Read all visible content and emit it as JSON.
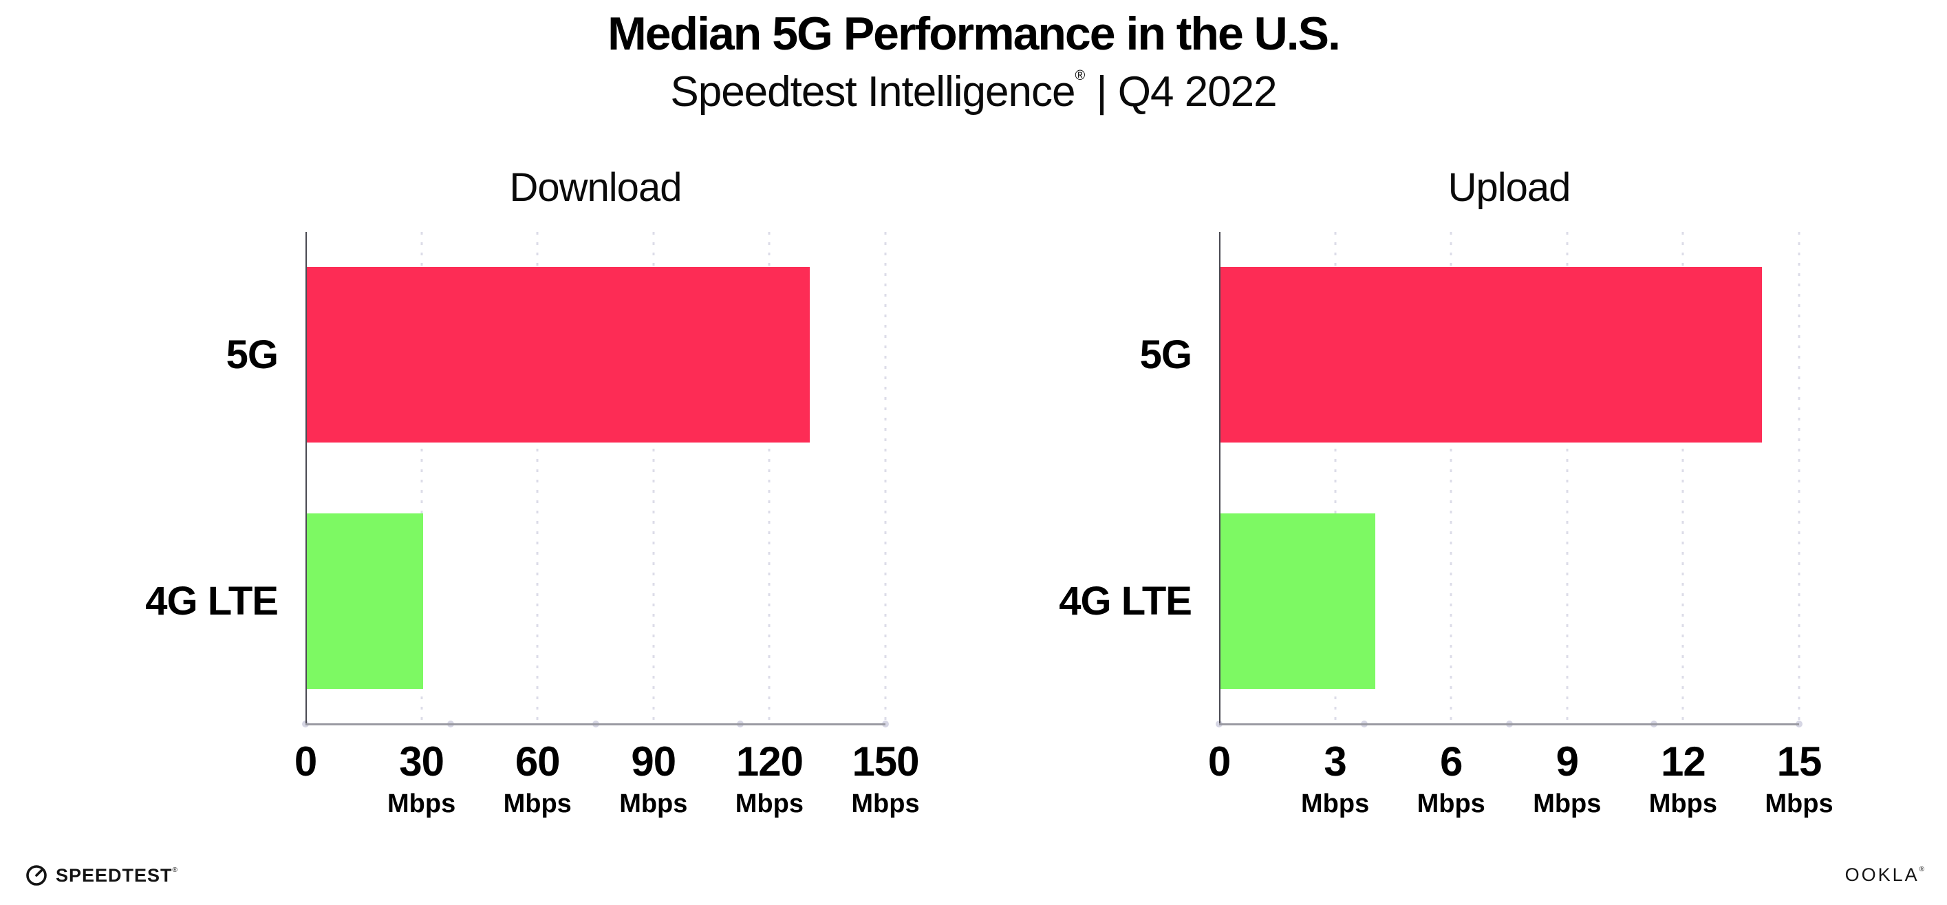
{
  "header": {
    "title": "Median 5G Performance in the U.S.",
    "subtitle_brand": "Speedtest Intelligence",
    "subtitle_reg": "®",
    "subtitle_rest": " | Q4 2022"
  },
  "chart_data": [
    {
      "type": "bar",
      "orientation": "horizontal",
      "title": "Download",
      "categories": [
        "5G",
        "4G LTE"
      ],
      "values": [
        130,
        30
      ],
      "unit": "Mbps",
      "xlim": [
        0,
        150
      ],
      "ticks": [
        0,
        30,
        60,
        90,
        120,
        150
      ],
      "grid": true,
      "bar_colors": [
        "#FD2C55",
        "#7DF963"
      ]
    },
    {
      "type": "bar",
      "orientation": "horizontal",
      "title": "Upload",
      "categories": [
        "5G",
        "4G LTE"
      ],
      "values": [
        14,
        4
      ],
      "unit": "Mbps",
      "xlim": [
        0,
        15
      ],
      "ticks": [
        0,
        3,
        6,
        9,
        12,
        15
      ],
      "grid": true,
      "bar_colors": [
        "#FD2C55",
        "#7DF963"
      ]
    }
  ],
  "colors": {
    "bar_5g": "#FD2C55",
    "bar_4g_lte": "#7DF963",
    "y_axis": "#4a4a52",
    "x_axis": "#9a9aa2",
    "gridline": "#dcdce8",
    "axis_dot": "#d6d6e4",
    "text": "#000000"
  },
  "footer": {
    "speedtest_label": "SPEEDTEST",
    "speedtest_reg": "®",
    "ookla_label": "OOKLA",
    "ookla_reg": "®"
  }
}
